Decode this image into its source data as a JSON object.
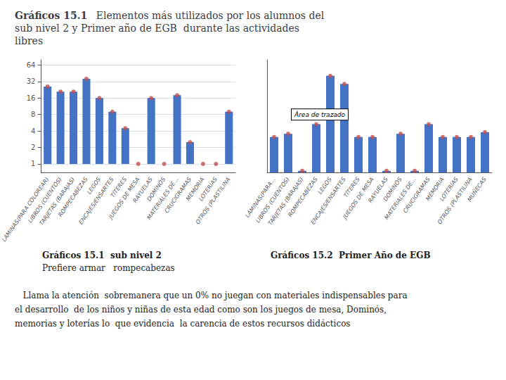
{
  "title": "Gráficos 15.1",
  "subtitle": "Elementos más utilizados por los alumnos del\nsub nivel 2 y Primer año de EGB  durante las actividades\nlibres",
  "annotations": [
    "   Llama la atención  sobremanera que un 0% no juegan con materiales indispensables para",
    "el desarrollo  de los niños y niñas de esta edad como son los juegos de mesa, Dominós,",
    "memorias y loterías lo  que evidencia  la carencia de estos recursos didácticos"
  ],
  "chart_data": [
    {
      "type": "bar",
      "title": "Gráficos 15.1  sub nivel 2",
      "subtitle": "Prefiere armar   rompecabezas",
      "categories": [
        "LÁMINAS(PARA COLOREAR)",
        "LIBROS (CUENTOS)",
        "TARJETAS (BARAJAS)",
        "ROMPECABEZAS",
        "LEGOS",
        "ENCAJES/ENSARTES",
        "TÍTERES",
        "JUEGOS DE MESA",
        "RAYUELAS",
        "DOMINÓS",
        "MATERIALES DE...",
        "CRUCIGRAMAS",
        "MEMORIA",
        "LOTERÍAS",
        "OTROS (PLASTILINA"
      ],
      "series": [
        {
          "type": "bar",
          "color": "#4472C4",
          "values": [
            26,
            21,
            21,
            36,
            16,
            9,
            4.5,
            1,
            16,
            1,
            18,
            2.5,
            1,
            1,
            9
          ]
        },
        {
          "type": "scatter",
          "color": "#C0504D",
          "marker": "circle",
          "values": [
            26,
            21,
            21,
            36,
            16,
            9,
            4.5,
            1,
            16,
            1,
            18,
            2.5,
            1,
            1,
            9
          ]
        }
      ],
      "log": "y",
      "ylim": [
        0.7,
        80
      ],
      "yticks": [
        1,
        2,
        4,
        8,
        16,
        32,
        64
      ],
      "grid": true
    },
    {
      "type": "bar",
      "title": "Gráficos 15.2  Primer Año de EGB",
      "categories": [
        "LÁMINAS(PARA...",
        "LIBROS (CUENTOS)",
        "TARJETAS (BARAJAS)",
        "ROMPECABEZAS",
        "LEGOS",
        "ENCAJES/ENSARTES",
        "TÍTERES",
        "JUEGOS DE MESA",
        "RAYUELAS",
        "DOMINÓS",
        "MATERIALES DE...",
        "CRUCIGRAMAS",
        "MEMORIA",
        "LOTERÍAS",
        "OTROS (PLASTILINA",
        "MUÑECAS"
      ],
      "series": [
        {
          "type": "bar",
          "color": "#4472C4",
          "values": [
            22,
            24,
            1,
            30,
            60,
            55,
            22,
            22,
            1,
            24,
            1,
            30,
            22,
            22,
            22,
            25
          ]
        },
        {
          "type": "scatter",
          "color": "#C0504D",
          "marker": "circle",
          "values": [
            22,
            24,
            1,
            30,
            60,
            55,
            22,
            22,
            1,
            24,
            1,
            30,
            22,
            22,
            22,
            25
          ]
        }
      ],
      "ylim": [
        0,
        70
      ],
      "grid": false,
      "tick_labels": "x",
      "annotations": [
        {
          "text": "Área de trazado",
          "x": "LIBROS (CUENTOS)",
          "y": 36
        }
      ]
    }
  ]
}
